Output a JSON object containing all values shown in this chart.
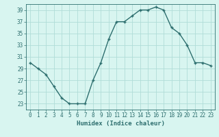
{
  "x": [
    0,
    1,
    2,
    3,
    4,
    5,
    6,
    7,
    8,
    9,
    10,
    11,
    12,
    13,
    14,
    15,
    16,
    17,
    18,
    19,
    20,
    21,
    22,
    23
  ],
  "y": [
    30,
    29,
    28,
    26,
    24,
    23,
    23,
    23,
    27,
    30,
    34,
    37,
    37,
    38,
    39,
    39,
    39.5,
    39,
    36,
    35,
    33,
    30,
    30,
    29.5
  ],
  "line_color": "#2d6e6e",
  "marker": "+",
  "marker_size": 3,
  "marker_lw": 1.0,
  "line_width": 1.0,
  "bg_color": "#d8f5f0",
  "grid_color": "#b0ddd8",
  "xlabel": "Humidex (Indice chaleur)",
  "ylim": [
    22,
    40
  ],
  "xlim": [
    -0.5,
    23.5
  ],
  "yticks": [
    23,
    25,
    27,
    29,
    31,
    33,
    35,
    37,
    39
  ],
  "xticks": [
    0,
    1,
    2,
    3,
    4,
    5,
    6,
    7,
    8,
    9,
    10,
    11,
    12,
    13,
    14,
    15,
    16,
    17,
    18,
    19,
    20,
    21,
    22,
    23
  ],
  "tick_color": "#2d6e6e",
  "label_fontsize": 6.5,
  "tick_fontsize": 5.5,
  "spine_color": "#2d6e6e"
}
